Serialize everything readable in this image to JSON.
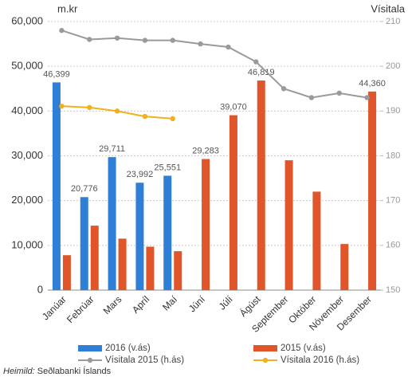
{
  "chart_data": {
    "type": "bar_line",
    "y_unit": "m.kr",
    "y2_unit": "Vísitala",
    "categories": [
      "Janúar",
      "Febrúar",
      "Mars",
      "Apríl",
      "Maí",
      "Júní",
      "Júlí",
      "Ágúst",
      "September",
      "Október",
      "Nóvember",
      "Desember"
    ],
    "series": [
      {
        "name": "2016 (v.ás)",
        "type": "bar",
        "color": "#2f7fd6",
        "values": [
          46399,
          20776,
          29711,
          23992,
          25551,
          null,
          null,
          null,
          null,
          null,
          null,
          null
        ],
        "value_labels": [
          "46,399",
          "20,776",
          "29,711",
          "23,992",
          "25,551",
          null,
          null,
          null,
          null,
          null,
          null,
          null
        ]
      },
      {
        "name": "2015 (v.ás)",
        "type": "bar",
        "color": "#e0552a",
        "values": [
          7800,
          14400,
          11500,
          9700,
          8700,
          29283,
          39070,
          46819,
          29000,
          22000,
          10300,
          44360
        ],
        "value_labels": [
          null,
          null,
          null,
          null,
          null,
          "29,283",
          "39,070",
          "46,819",
          null,
          null,
          null,
          "44,360"
        ]
      },
      {
        "name": "Vísitala 2015 (h.ás)",
        "type": "line",
        "axis": "y2",
        "color": "#9a9a9a",
        "values": [
          208,
          206,
          206.3,
          205.8,
          205.8,
          205,
          204.3,
          201,
          195,
          193,
          194,
          193
        ]
      },
      {
        "name": "Vísitala 2016 (h.ás)",
        "type": "line",
        "axis": "y2",
        "color": "#f0b020",
        "values": [
          191.1,
          190.8,
          190,
          188.8,
          188.3,
          null,
          null,
          null,
          null,
          null,
          null,
          null
        ]
      }
    ],
    "ylim": [
      0,
      60000
    ],
    "yticks": [
      0,
      {
        "value": 10000,
        "label": "10,000"
      },
      {
        "value": 20000,
        "label": "20,000"
      },
      {
        "value": 30000,
        "label": "30,000"
      },
      {
        "value": 40000,
        "label": "40,000"
      },
      {
        "value": 50000,
        "label": "50,000"
      },
      {
        "value": 60000,
        "label": "60,000"
      }
    ],
    "y2lim": [
      150,
      210
    ],
    "y2ticks": [
      150,
      160,
      170,
      180,
      190,
      200,
      210
    ],
    "grid": true,
    "legend": "bottom",
    "source_label": "Heimild:",
    "source": "Seðlabanki Íslands"
  }
}
